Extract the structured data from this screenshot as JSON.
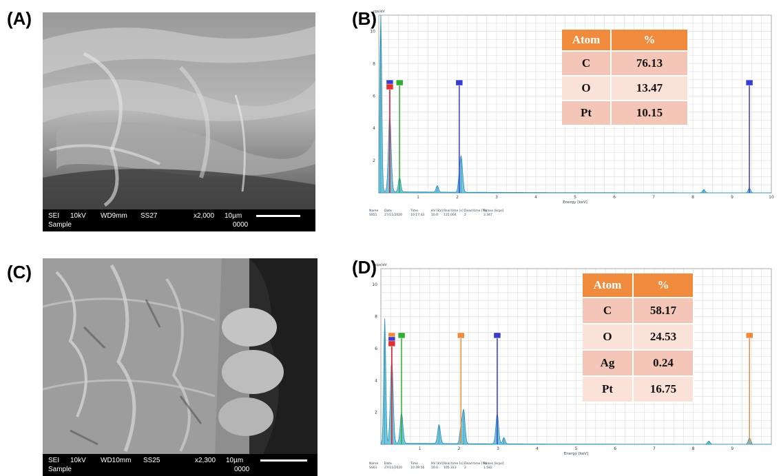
{
  "panels": {
    "A": {
      "label": "(A)",
      "info": {
        "mode": "SEI",
        "kv": "10kV",
        "wd": "WD9mm",
        "ss": "SS27",
        "mag": "x2,000",
        "scale": "10µm",
        "sample": "Sample",
        "num": "0000"
      }
    },
    "B": {
      "label": "(B)",
      "y_unit": "cps/eV",
      "x_label": "Energy [keV]",
      "y_ticks": [
        "2",
        "4",
        "6",
        "8",
        "10"
      ],
      "x_ticks": [
        "1",
        "2",
        "3",
        "4",
        "5",
        "6",
        "7",
        "8",
        "9",
        "10"
      ],
      "table": {
        "headers": [
          "Atom",
          "%"
        ],
        "rows": [
          [
            "C",
            "76.13"
          ],
          [
            "O",
            "13.47"
          ],
          [
            "Pt",
            "10.15"
          ]
        ]
      },
      "meta": {
        "headers": [
          "Name",
          "Date",
          "Time",
          "HV [kV]",
          "Real time [s]",
          "Dead time [%]",
          "Pulses [kcps]"
        ],
        "values": [
          "SS51",
          "27/11/2020",
          "10:17:43",
          "10.0",
          "115.004",
          "2",
          "3.347"
        ]
      }
    },
    "C": {
      "label": "(C)",
      "info": {
        "mode": "SEI",
        "kv": "10kV",
        "wd": "WD10mm",
        "ss": "SS25",
        "mag": "x2,300",
        "scale": "10µm",
        "sample": "Sample",
        "num": "0000"
      }
    },
    "D": {
      "label": "(D)",
      "y_unit": "cps/eV",
      "x_label": "Energy [keV]",
      "y_ticks": [
        "2",
        "4",
        "6",
        "8",
        "10"
      ],
      "x_ticks": [
        "1",
        "2",
        "3",
        "4",
        "5",
        "6",
        "7",
        "8",
        "9"
      ],
      "table": {
        "headers": [
          "Atom",
          "%"
        ],
        "rows": [
          [
            "C",
            "58.17"
          ],
          [
            "O",
            "24.53"
          ],
          [
            "Ag",
            "0.24"
          ],
          [
            "Pt",
            "16.75"
          ]
        ]
      },
      "meta": {
        "headers": [
          "Name",
          "Date",
          "Time",
          "HV [kV]",
          "Real time [s]",
          "Dead time [%]",
          "Pulses [kcps]"
        ],
        "values": [
          "SS61",
          "27/11/2020",
          "10:39:56",
          "10.0",
          "105.313",
          "2",
          "1.582"
        ]
      }
    }
  },
  "chart_data": [
    {
      "panel": "B",
      "type": "line",
      "xlabel": "Energy [keV]",
      "ylabel": "cps/eV",
      "xlim": [
        0,
        10
      ],
      "ylim": [
        0,
        11
      ],
      "grid": true,
      "peaks": [
        {
          "energy": 0.05,
          "intensity": 11.0
        },
        {
          "energy": 0.28,
          "intensity": 4.7
        },
        {
          "energy": 0.53,
          "intensity": 0.9
        },
        {
          "energy": 1.49,
          "intensity": 0.4
        },
        {
          "energy": 2.05,
          "intensity": 0.6
        },
        {
          "energy": 2.1,
          "intensity": 2.1
        },
        {
          "energy": 8.28,
          "intensity": 0.2
        },
        {
          "energy": 9.44,
          "intensity": 0.3
        }
      ],
      "markers": [
        {
          "energy": 0.28,
          "color": "#3a3ad0"
        },
        {
          "energy": 0.28,
          "color": "#e03030"
        },
        {
          "energy": 0.53,
          "color": "#30b030"
        },
        {
          "energy": 2.05,
          "color": "#3a3ad0"
        },
        {
          "energy": 9.44,
          "color": "#3a3ad0"
        }
      ]
    },
    {
      "panel": "D",
      "type": "line",
      "xlabel": "Energy [keV]",
      "ylabel": "cps/eV",
      "xlim": [
        0,
        10
      ],
      "ylim": [
        0,
        11
      ],
      "grid": true,
      "peaks": [
        {
          "energy": 0.1,
          "intensity": 7.8
        },
        {
          "energy": 0.28,
          "intensity": 5.2
        },
        {
          "energy": 0.53,
          "intensity": 1.9
        },
        {
          "energy": 1.49,
          "intensity": 1.2
        },
        {
          "energy": 2.05,
          "intensity": 0.9
        },
        {
          "energy": 2.12,
          "intensity": 2.1
        },
        {
          "energy": 2.98,
          "intensity": 1.9
        },
        {
          "energy": 3.15,
          "intensity": 0.4
        },
        {
          "energy": 8.4,
          "intensity": 0.2
        },
        {
          "energy": 9.44,
          "intensity": 0.4
        }
      ],
      "markers": [
        {
          "energy": 0.28,
          "color": "#f08a3c"
        },
        {
          "energy": 0.28,
          "color": "#3a3ad0"
        },
        {
          "energy": 0.28,
          "color": "#e03030"
        },
        {
          "energy": 0.53,
          "color": "#30b030"
        },
        {
          "energy": 2.05,
          "color": "#f08a3c"
        },
        {
          "energy": 2.98,
          "color": "#3a3ad0"
        },
        {
          "energy": 9.44,
          "color": "#f08a3c"
        }
      ]
    }
  ],
  "colors": {
    "table_header": "#f08a3c",
    "row_dark": "#f4c6b8",
    "row_light": "#fbe2d9",
    "spectrum_fill": "#5bbcd6",
    "grid": "#dcdcdc"
  }
}
